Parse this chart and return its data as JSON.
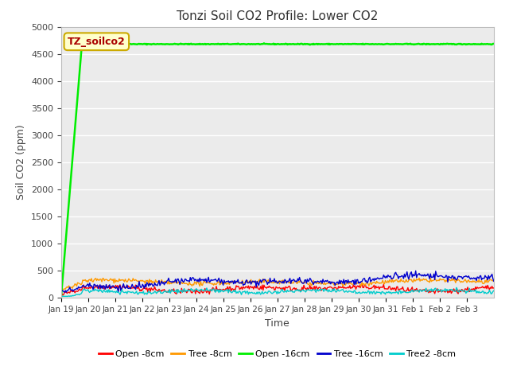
{
  "title": "Tonzi Soil CO2 Profile: Lower CO2",
  "xlabel": "Time",
  "ylabel": "Soil CO2 (ppm)",
  "ylim": [
    0,
    5000
  ],
  "yticks": [
    0,
    500,
    1000,
    1500,
    2000,
    2500,
    3000,
    3500,
    4000,
    4500,
    5000
  ],
  "fig_bg_color": "#ffffff",
  "plot_bg_color": "#ebebeb",
  "legend_label": "TZ_soilco2",
  "legend_box_color": "#ffffcc",
  "legend_box_edge": "#ccaa00",
  "series": [
    {
      "name": "Open -8cm",
      "color": "#ff0000"
    },
    {
      "name": "Tree -8cm",
      "color": "#ff9900"
    },
    {
      "name": "Open -16cm",
      "color": "#00ee00"
    },
    {
      "name": "Tree -16cm",
      "color": "#0000cc"
    },
    {
      "name": "Tree2 -8cm",
      "color": "#00cccc"
    }
  ],
  "n_points": 500,
  "total_days": 16,
  "open16_flat_value": 4680,
  "open16_initial_value": 5,
  "tick_labels": [
    "Jan 19",
    "Jan 20",
    "Jan 21",
    "Jan 22",
    "Jan 23",
    "Jan 24",
    "Jan 25",
    "Jan 26",
    "Jan 27",
    "Jan 28",
    "Jan 29",
    "Jan 30",
    "Jan 31",
    "Feb 1",
    "Feb 2",
    "Feb 3"
  ]
}
